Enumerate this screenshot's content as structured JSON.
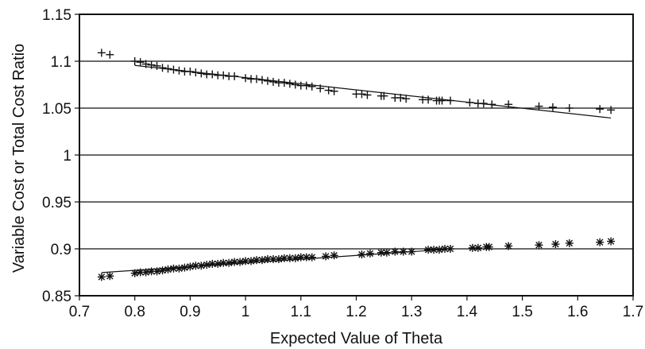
{
  "chart_data": {
    "type": "scatter",
    "title": "",
    "xlabel": "Expected Value of Theta",
    "ylabel": "Variable Cost or Total Cost Ratio",
    "xlim": [
      0.7,
      1.7
    ],
    "ylim": [
      0.85,
      1.15
    ],
    "x_ticks": [
      "0.7",
      "0.8",
      "0.9",
      "1",
      "1.1",
      "1.2",
      "1.3",
      "1.4",
      "1.5",
      "1.6",
      "1.7"
    ],
    "y_ticks": [
      "0.85",
      "0.9",
      "0.95",
      "1",
      "1.05",
      "1.1",
      "1.15"
    ],
    "grid": "horizontal",
    "legend": "none",
    "series": [
      {
        "marker": "plus",
        "trendline": true,
        "points": [
          [
            0.74,
            1.109
          ],
          [
            0.755,
            1.107
          ],
          [
            0.8,
            1.1
          ],
          [
            0.81,
            1.099
          ],
          [
            0.82,
            1.097
          ],
          [
            0.83,
            1.096
          ],
          [
            0.84,
            1.095
          ],
          [
            0.85,
            1.093
          ],
          [
            0.86,
            1.092
          ],
          [
            0.87,
            1.091
          ],
          [
            0.88,
            1.09
          ],
          [
            0.89,
            1.089
          ],
          [
            0.9,
            1.089
          ],
          [
            0.91,
            1.088
          ],
          [
            0.92,
            1.087
          ],
          [
            0.93,
            1.086
          ],
          [
            0.94,
            1.086
          ],
          [
            0.95,
            1.085
          ],
          [
            0.96,
            1.085
          ],
          [
            0.97,
            1.084
          ],
          [
            0.98,
            1.084
          ],
          [
            1.0,
            1.082
          ],
          [
            1.01,
            1.081
          ],
          [
            1.02,
            1.081
          ],
          [
            1.03,
            1.08
          ],
          [
            1.04,
            1.079
          ],
          [
            1.05,
            1.078
          ],
          [
            1.06,
            1.077
          ],
          [
            1.07,
            1.077
          ],
          [
            1.08,
            1.076
          ],
          [
            1.09,
            1.075
          ],
          [
            1.1,
            1.074
          ],
          [
            1.11,
            1.074
          ],
          [
            1.12,
            1.073
          ],
          [
            1.135,
            1.071
          ],
          [
            1.15,
            1.069
          ],
          [
            1.16,
            1.068
          ],
          [
            1.2,
            1.065
          ],
          [
            1.21,
            1.065
          ],
          [
            1.22,
            1.064
          ],
          [
            1.245,
            1.063
          ],
          [
            1.25,
            1.063
          ],
          [
            1.27,
            1.061
          ],
          [
            1.28,
            1.061
          ],
          [
            1.29,
            1.06
          ],
          [
            1.32,
            1.059
          ],
          [
            1.33,
            1.059
          ],
          [
            1.345,
            1.058
          ],
          [
            1.35,
            1.058
          ],
          [
            1.355,
            1.058
          ],
          [
            1.37,
            1.058
          ],
          [
            1.405,
            1.056
          ],
          [
            1.42,
            1.055
          ],
          [
            1.43,
            1.055
          ],
          [
            1.445,
            1.054
          ],
          [
            1.475,
            1.054
          ],
          [
            1.53,
            1.052
          ],
          [
            1.555,
            1.051
          ],
          [
            1.585,
            1.05
          ],
          [
            1.64,
            1.049
          ],
          [
            1.66,
            1.048
          ]
        ],
        "trend_x": [
          0.8,
          1.66
        ]
      },
      {
        "marker": "asterisk",
        "trendline": true,
        "points": [
          [
            0.74,
            0.87
          ],
          [
            0.755,
            0.871
          ],
          [
            0.8,
            0.874
          ],
          [
            0.81,
            0.875
          ],
          [
            0.82,
            0.875
          ],
          [
            0.83,
            0.876
          ],
          [
            0.84,
            0.876
          ],
          [
            0.85,
            0.877
          ],
          [
            0.86,
            0.878
          ],
          [
            0.87,
            0.879
          ],
          [
            0.88,
            0.879
          ],
          [
            0.89,
            0.88
          ],
          [
            0.9,
            0.881
          ],
          [
            0.91,
            0.882
          ],
          [
            0.92,
            0.882
          ],
          [
            0.93,
            0.883
          ],
          [
            0.94,
            0.884
          ],
          [
            0.95,
            0.884
          ],
          [
            0.96,
            0.885
          ],
          [
            0.97,
            0.885
          ],
          [
            0.98,
            0.886
          ],
          [
            0.99,
            0.886
          ],
          [
            1.0,
            0.887
          ],
          [
            1.01,
            0.887
          ],
          [
            1.02,
            0.888
          ],
          [
            1.03,
            0.888
          ],
          [
            1.04,
            0.889
          ],
          [
            1.05,
            0.889
          ],
          [
            1.06,
            0.889
          ],
          [
            1.07,
            0.89
          ],
          [
            1.08,
            0.89
          ],
          [
            1.09,
            0.89
          ],
          [
            1.1,
            0.891
          ],
          [
            1.11,
            0.891
          ],
          [
            1.12,
            0.891
          ],
          [
            1.145,
            0.892
          ],
          [
            1.16,
            0.893
          ],
          [
            1.21,
            0.894
          ],
          [
            1.225,
            0.895
          ],
          [
            1.245,
            0.896
          ],
          [
            1.255,
            0.896
          ],
          [
            1.27,
            0.897
          ],
          [
            1.285,
            0.897
          ],
          [
            1.3,
            0.897
          ],
          [
            1.33,
            0.899
          ],
          [
            1.34,
            0.899
          ],
          [
            1.35,
            0.899
          ],
          [
            1.36,
            0.9
          ],
          [
            1.37,
            0.9
          ],
          [
            1.41,
            0.901
          ],
          [
            1.42,
            0.901
          ],
          [
            1.435,
            0.902
          ],
          [
            1.44,
            0.902
          ],
          [
            1.475,
            0.903
          ],
          [
            1.53,
            0.904
          ],
          [
            1.56,
            0.905
          ],
          [
            1.585,
            0.906
          ],
          [
            1.64,
            0.907
          ],
          [
            1.66,
            0.908
          ]
        ],
        "trend_x": [
          0.74,
          1.37
        ]
      }
    ]
  }
}
